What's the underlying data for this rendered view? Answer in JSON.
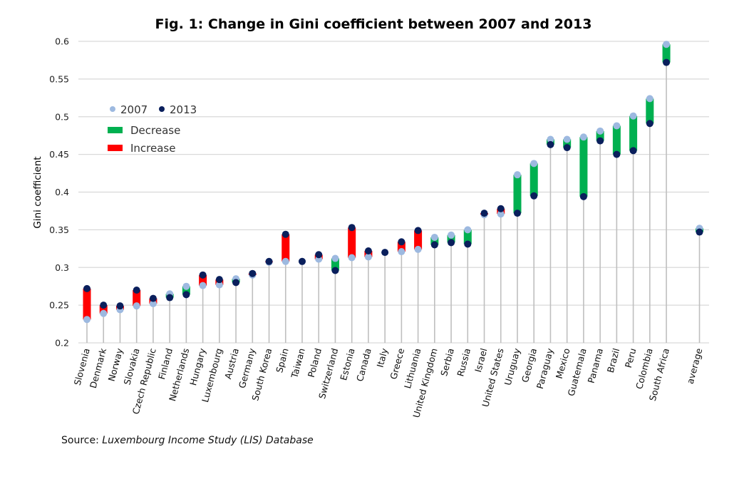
{
  "chart_data": {
    "type": "dumbbell",
    "title": "Fig. 1: Change in Gini coefficient between 2007 and 2013",
    "xlabel": "",
    "ylabel": "Gini coefficient",
    "ylim": [
      0.2,
      0.6
    ],
    "yticks": [
      "0.2",
      "0.25",
      "0.3",
      "0.35",
      "0.4",
      "0.45",
      "0.5",
      "0.55",
      "0.6"
    ],
    "ytick_values": [
      0.2,
      0.25,
      0.3,
      0.35,
      0.4,
      0.45,
      0.5,
      0.55,
      0.6
    ],
    "grid": true,
    "legend_position": "top-left",
    "legend": {
      "series_2007": "2007",
      "series_2013": "2013",
      "decrease": "Decrease",
      "increase": "Increase"
    },
    "colors": {
      "y2007": "#9DB9E0",
      "y2013": "#0A1F5C",
      "decrease": "#00B050",
      "increase": "#FF0000",
      "grid": "#D9D9D9",
      "stem": "#BFBFBF"
    },
    "categories": [
      "Slovenia",
      "Denmark",
      "Norway",
      "Slovakia",
      "Czech Republic",
      "Finland",
      "Netherlands",
      "Hungary",
      "Luxembourg",
      "Austria",
      "Germany",
      "South Korea",
      "Spain",
      "Taiwan",
      "Poland",
      "Switzerland",
      "Estonia",
      "Canada",
      "Italy",
      "Greece",
      "Lithuania",
      "United Kingdom",
      "Serbia",
      "Russia",
      "Israel",
      "United States",
      "Uruguay",
      "Georgia",
      "Paraguay",
      "Mexico",
      "Guatemala",
      "Panama",
      "Brazil",
      "Peru",
      "Colombia",
      "South Africa",
      "average"
    ],
    "series": [
      {
        "name": "2007",
        "values": [
          0.231,
          0.239,
          0.244,
          0.249,
          0.252,
          0.265,
          0.275,
          0.276,
          0.277,
          0.285,
          0.29,
          0.307,
          0.308,
          0.308,
          0.311,
          0.312,
          0.313,
          0.314,
          0.32,
          0.321,
          0.324,
          0.34,
          0.343,
          0.35,
          0.37,
          0.371,
          0.423,
          0.438,
          0.47,
          0.47,
          0.473,
          0.481,
          0.488,
          0.501,
          0.524,
          0.596,
          0.352
        ]
      },
      {
        "name": "2013",
        "values": [
          0.272,
          0.25,
          0.249,
          0.27,
          0.259,
          0.26,
          0.264,
          0.29,
          0.284,
          0.28,
          0.292,
          0.308,
          0.344,
          0.308,
          0.317,
          0.296,
          0.353,
          0.322,
          0.32,
          0.334,
          0.349,
          0.33,
          0.333,
          0.331,
          0.372,
          0.378,
          0.372,
          0.395,
          0.463,
          0.459,
          0.394,
          0.468,
          0.45,
          0.455,
          0.491,
          0.572,
          0.347
        ]
      }
    ],
    "gap_before_last": true
  },
  "source": {
    "prefix": "Source: ",
    "name": "Luxembourg Income Study (LIS) Database"
  }
}
